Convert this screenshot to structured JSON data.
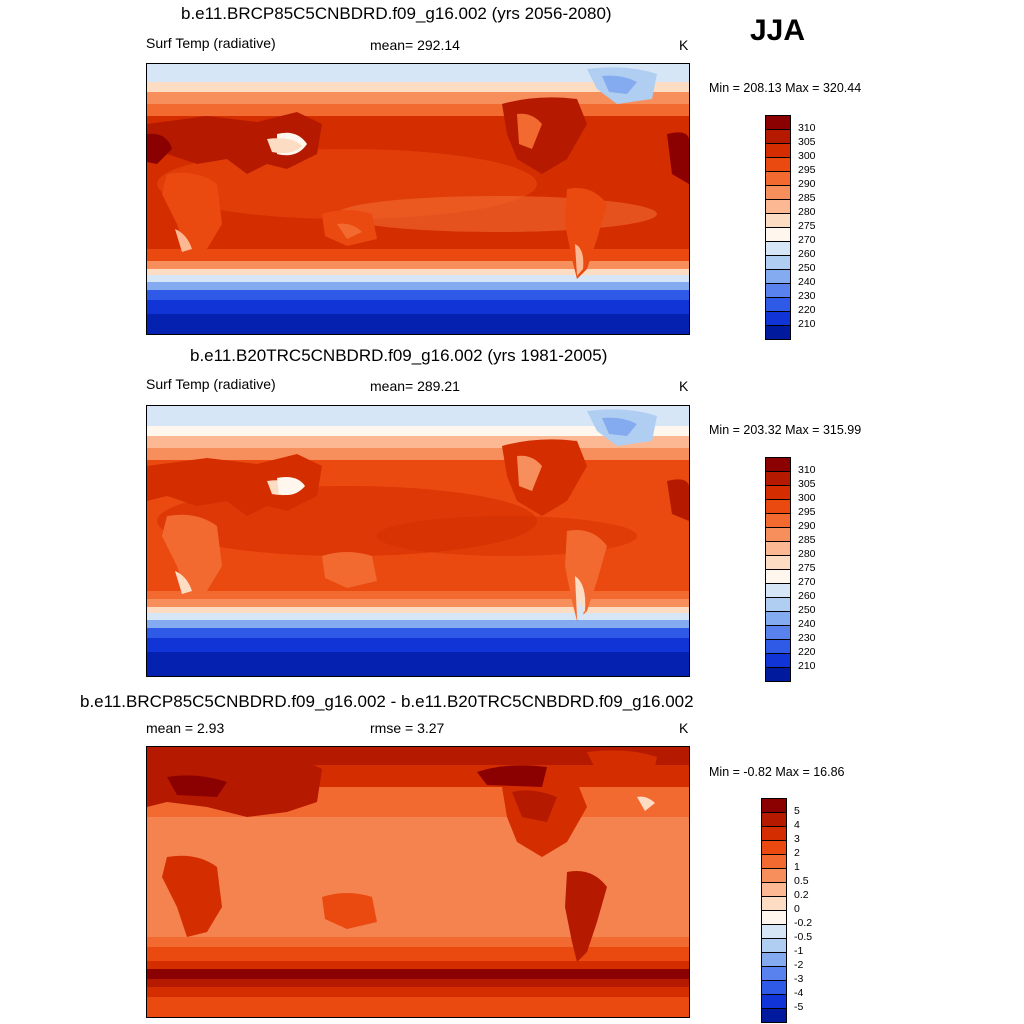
{
  "season": "JJA",
  "panels": [
    {
      "title": "b.e11.BRCP85C5CNBDRD.f09_g16.002 (yrs 2056-2080)",
      "left_label": "Surf Temp (radiative)",
      "center_label": "mean= 292.14",
      "units": "K",
      "minmax": "Min = 208.13 Max = 320.44"
    },
    {
      "title": "b.e11.B20TRC5CNBDRD.f09_g16.002 (yrs 1981-2005)",
      "left_label": "Surf Temp (radiative)",
      "center_label": "mean= 289.21",
      "units": "K",
      "minmax": "Min = 203.32 Max = 315.99"
    },
    {
      "title": "b.e11.BRCP85C5CNBDRD.f09_g16.002 - b.e11.B20TRC5CNBDRD.f09_g16.002",
      "left_label": "mean =   2.93",
      "center_label": "rmse =   3.27",
      "units": "K",
      "minmax": "Min =  -0.82 Max =  16.86"
    }
  ],
  "colorbars": {
    "absolute": {
      "labels": [
        "310",
        "305",
        "300",
        "295",
        "290",
        "285",
        "280",
        "275",
        "270",
        "260",
        "250",
        "240",
        "230",
        "220",
        "210"
      ],
      "colors": [
        "#8b0000",
        "#b51a00",
        "#d42d00",
        "#ea4a10",
        "#f26a30",
        "#f78f5d",
        "#fbb892",
        "#fddcc4",
        "#fff6ee",
        "#d6e6f6",
        "#b0cef2",
        "#84aaf0",
        "#5a82ee",
        "#2f5ae8",
        "#1034d6",
        "#001a9e"
      ]
    },
    "difference": {
      "labels": [
        "5",
        "4",
        "3",
        "2",
        "1",
        "0.5",
        "0.2",
        "0",
        "-0.2",
        "-0.5",
        "-1",
        "-2",
        "-3",
        "-4",
        "-5"
      ],
      "colors": [
        "#8b0000",
        "#b51a00",
        "#d42d00",
        "#ea4a10",
        "#f26a30",
        "#f78f5d",
        "#fbb892",
        "#fddcc4",
        "#fff6ee",
        "#d6e6f6",
        "#b0cef2",
        "#84aaf0",
        "#5a82ee",
        "#2f5ae8",
        "#1034d6",
        "#001a9e"
      ]
    }
  }
}
